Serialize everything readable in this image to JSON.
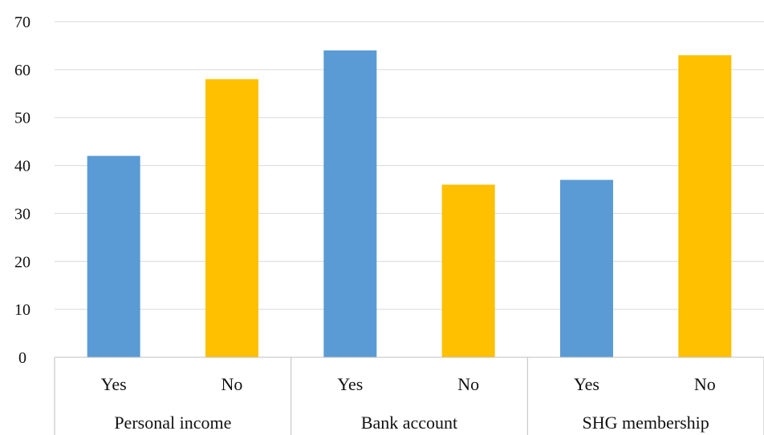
{
  "chart_data": {
    "type": "bar",
    "groups": [
      {
        "label": "Personal income",
        "categories": [
          "Yes",
          "No"
        ],
        "values": [
          42,
          58
        ]
      },
      {
        "label": "Bank account",
        "categories": [
          "Yes",
          "No"
        ],
        "values": [
          64,
          36
        ]
      },
      {
        "label": "SHG membership",
        "categories": [
          "Yes",
          "No"
        ],
        "values": [
          37,
          63
        ]
      }
    ],
    "bar_colors": {
      "Yes": "#5b9bd5",
      "No": "#ffc000"
    },
    "y_ticks": [
      "0",
      "10",
      "20",
      "30",
      "40",
      "50",
      "60",
      "70"
    ],
    "ylim": [
      0,
      70
    ],
    "grid": true,
    "legend": "none"
  }
}
